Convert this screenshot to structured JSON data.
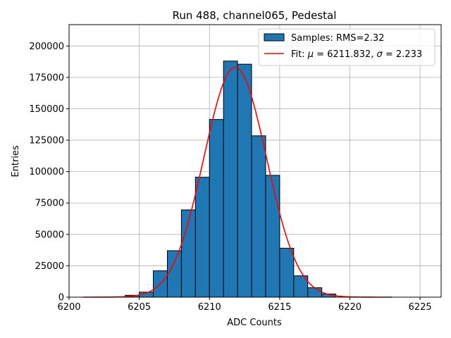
{
  "chart_data": {
    "type": "bar",
    "title": "Run 488, channel065, Pedestal",
    "xlabel": "ADC Counts",
    "ylabel": "Entries",
    "xlim": [
      6200,
      6226.5
    ],
    "ylim": [
      0,
      217000
    ],
    "xticks": [
      6200,
      6205,
      6210,
      6215,
      6220,
      6225
    ],
    "yticks": [
      0,
      25000,
      50000,
      75000,
      100000,
      125000,
      150000,
      175000,
      200000
    ],
    "grid": true,
    "legend_position": "top-right",
    "histogram": {
      "name": "Samples: RMS=2.32",
      "color": "#1f77b4",
      "bin_width": 1,
      "bin_starts": [
        6204,
        6205,
        6206,
        6207,
        6208,
        6209,
        6210,
        6211,
        6212,
        6213,
        6214,
        6215,
        6216,
        6217,
        6218
      ],
      "values": [
        1500,
        4000,
        21000,
        37000,
        69500,
        95500,
        141500,
        188000,
        185500,
        128500,
        97000,
        39000,
        17000,
        7500,
        2500
      ]
    },
    "fit": {
      "name_prefix": "Fit: ",
      "name_mu": "μ",
      "name_mid": " = 6211.832, ",
      "name_sigma": "σ",
      "name_suffix": " = 2.233",
      "color": "#ff0000",
      "mu": 6211.832,
      "sigma": 2.233,
      "amplitude": 183000,
      "x_range": [
        6201,
        6223
      ]
    }
  }
}
